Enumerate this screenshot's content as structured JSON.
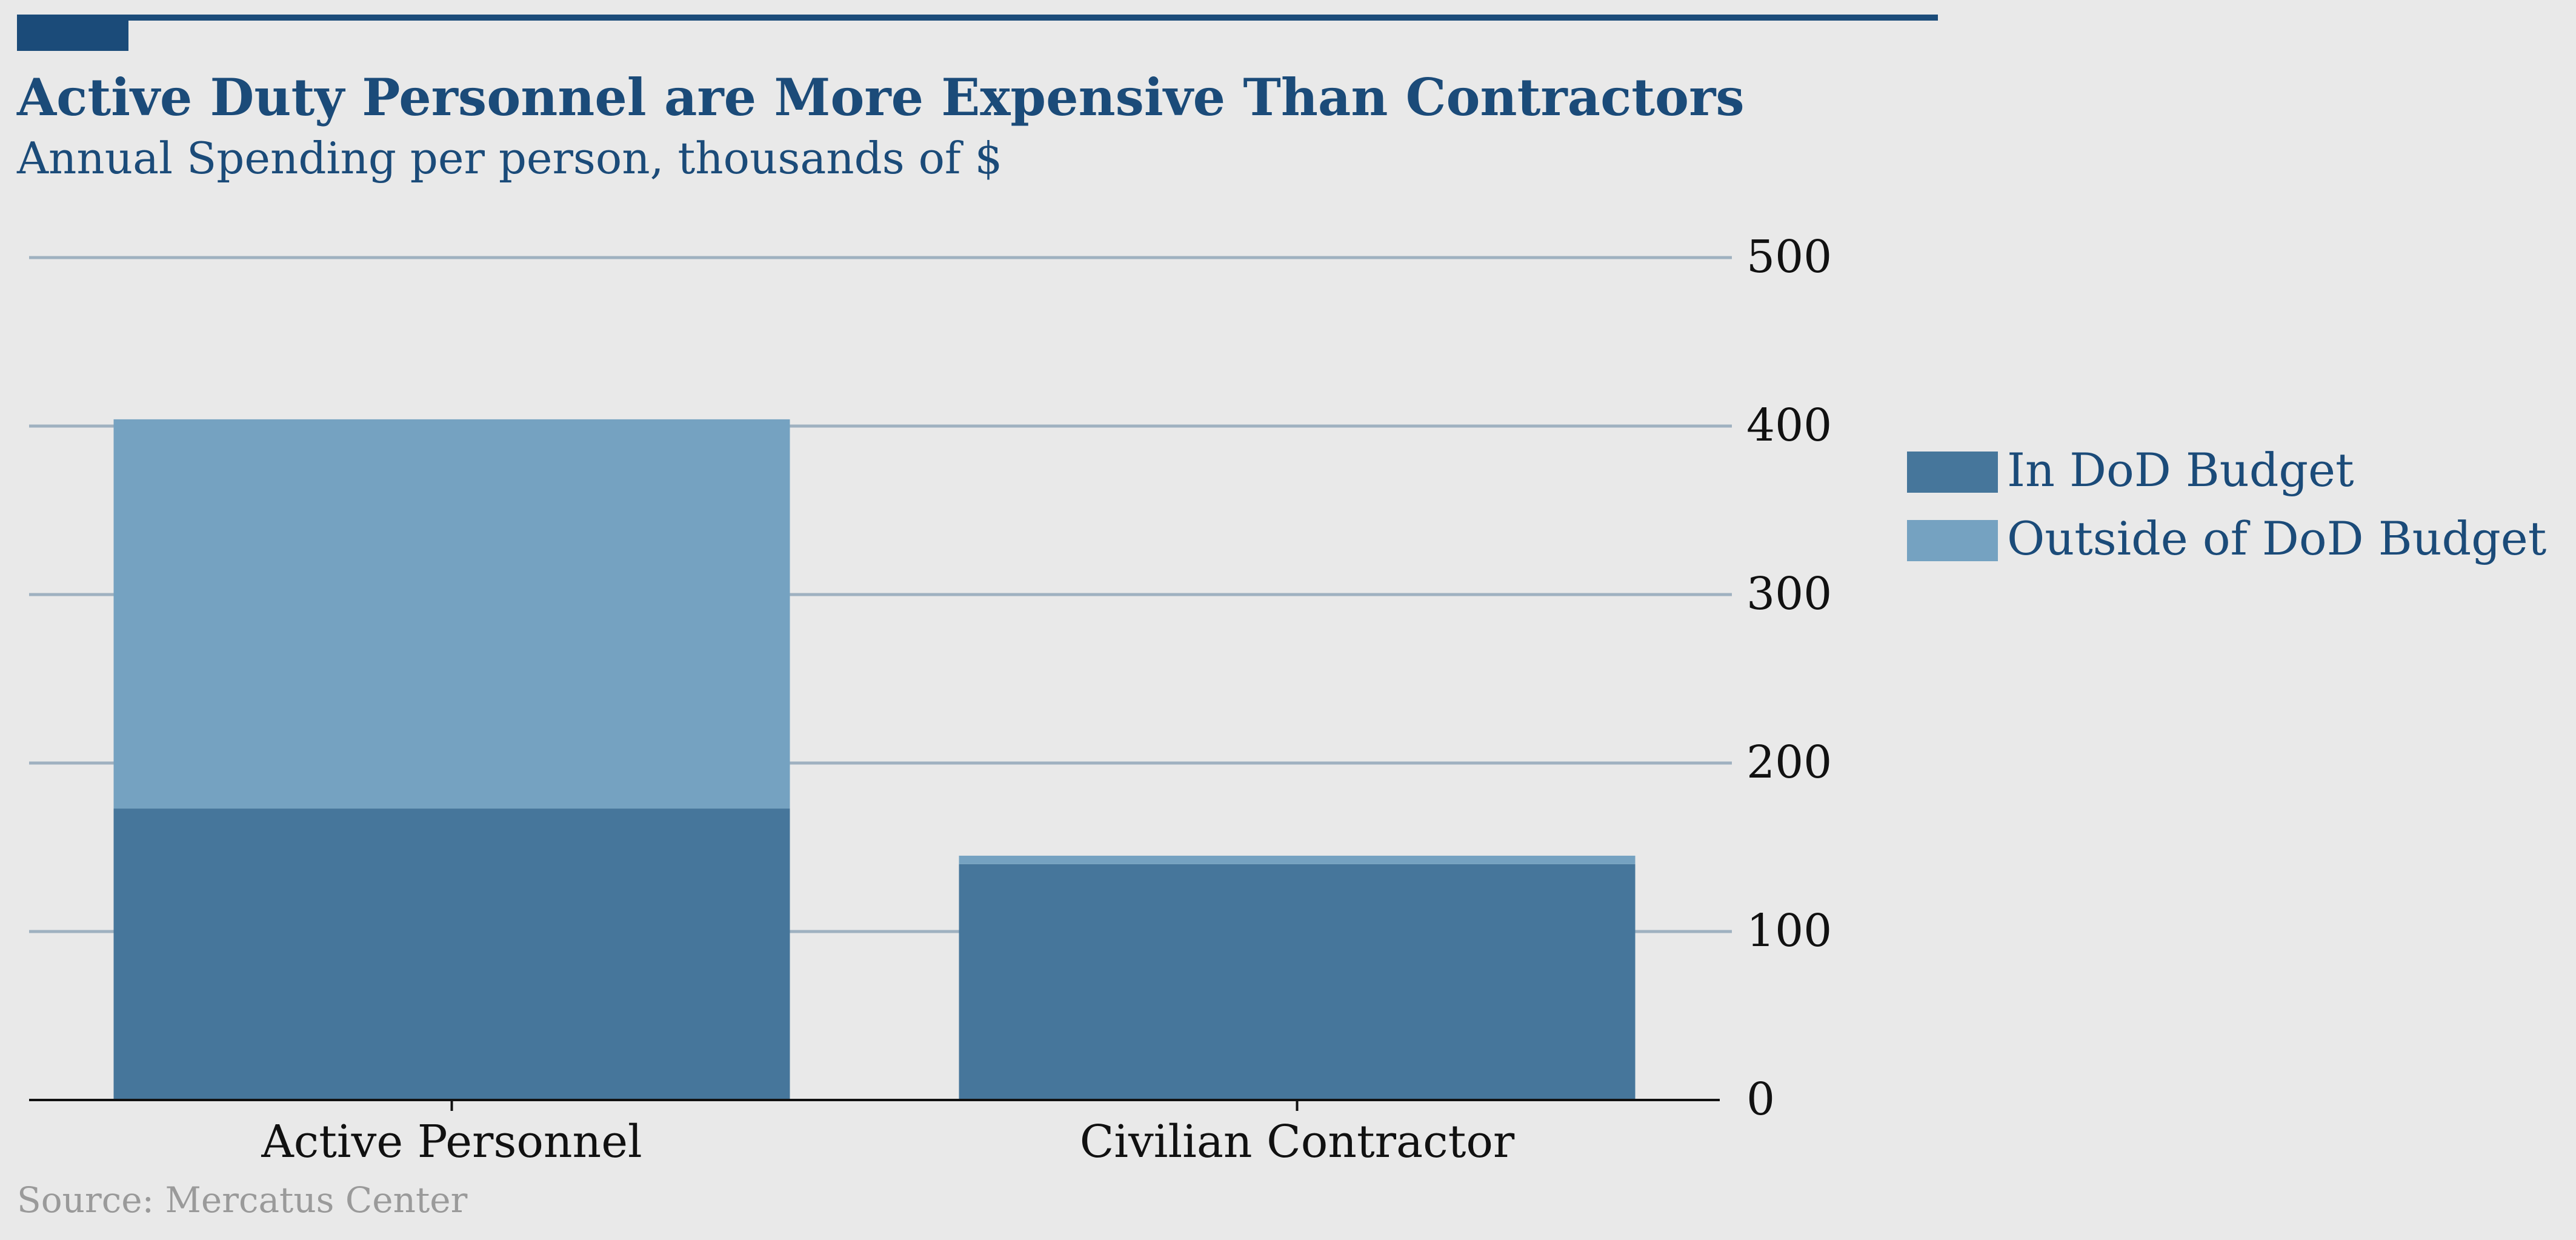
{
  "chart_data": {
    "type": "bar",
    "stacked": true,
    "title": "Active Duty Personnel are More Expensive Than Contractors",
    "subtitle": "Annual Spending per person, thousands of $",
    "categories": [
      "Active Personnel",
      "Civilian Contractor"
    ],
    "series": [
      {
        "name": "In DoD Budget",
        "values": [
          173,
          140
        ],
        "color": "#46769b"
      },
      {
        "name": "Outside of DoD Budget",
        "values": [
          231,
          5
        ],
        "color": "#75a2c1"
      }
    ],
    "ylim": [
      0,
      500
    ],
    "yticks": [
      0,
      100,
      200,
      300,
      400,
      500
    ],
    "y_axis_side": "right",
    "grid": true,
    "legend_position": "right",
    "source": "Source: Mercatus Center"
  },
  "colors": {
    "background": "#e9e9e9",
    "accent": "#1b4b79",
    "grid": "#9fb1c0",
    "text_dark": "#111111",
    "source_text": "#9a9a9a"
  }
}
